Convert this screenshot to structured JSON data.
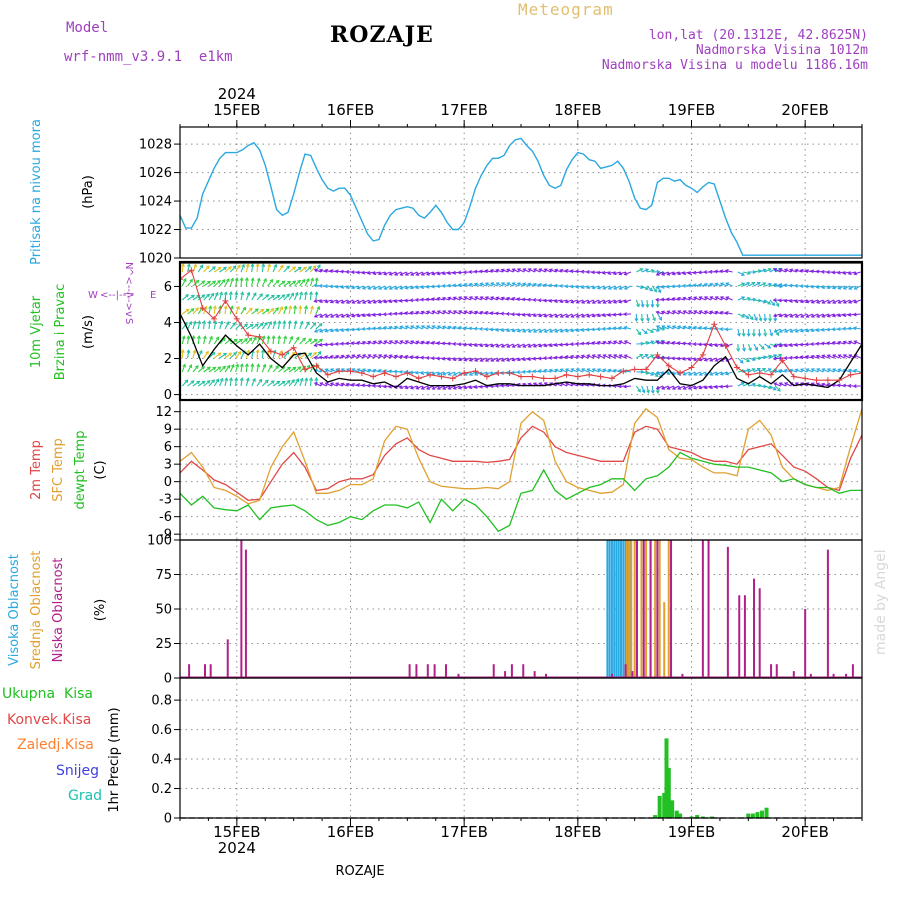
{
  "header": {
    "model_label": "Model",
    "model_name": "wrf-nmm_v3.9.1  e1km",
    "station": "ROZAJE",
    "product": "Meteogram",
    "coords": "lon,lat (20.1312E, 42.8625N)",
    "elevation": "Nadmorska Visina 1012m",
    "model_elevation": "Nadmorska Visina u modelu 1186.16m",
    "footer_station": "ROZAJE",
    "credit": "made by Angel"
  },
  "colors": {
    "pressure": "#2aa8e0",
    "wind_speed": "#000000",
    "gust": "#e04040",
    "temp2m": "#e04848",
    "sfc": "#e0a030",
    "dewpt": "#22c022",
    "cloud_high": "#2aa8e0",
    "cloud_mid": "#e0a030",
    "cloud_low": "#b0208a",
    "precip": "#22c022",
    "conv": "#e04848",
    "frozen": "#ff8030",
    "snow": "#4040e0",
    "grad": "#20c0b0",
    "compass": "#a040c0"
  },
  "axes": {
    "top_year": "2024",
    "bottom_year": "2024",
    "day_labels": [
      "15FEB",
      "16FEB",
      "17FEB",
      "18FEB",
      "19FEB",
      "20FEB"
    ]
  },
  "compass": {
    "n": "N",
    "e": "E",
    "w": "W",
    "s": "S",
    "arrow": "<--|-->",
    "vert": "^<--|-->v"
  },
  "chart_data": [
    {
      "type": "line",
      "panel": "pressure",
      "ylabel_main": "Pritisak na nivou mora",
      "ylabel_unit": "(hPa)",
      "yticks": [
        1020,
        1022,
        1024,
        1026,
        1028
      ],
      "ylim": [
        1020,
        1029.2
      ],
      "x_days": [
        -0.5,
        -0.45,
        -0.4,
        -0.35,
        -0.3,
        -0.25,
        -0.2,
        -0.15,
        -0.1,
        -0.05,
        0,
        0.05,
        0.1,
        0.15,
        0.2,
        0.25,
        0.3,
        0.35,
        0.4,
        0.45,
        0.5,
        0.55,
        0.6,
        0.65,
        0.7,
        0.75,
        0.8,
        0.85,
        0.9,
        0.95,
        1,
        1.05,
        1.1,
        1.15,
        1.2,
        1.25,
        1.3,
        1.35,
        1.4,
        1.45,
        1.5,
        1.55,
        1.6,
        1.65,
        1.7,
        1.75,
        1.8,
        1.85,
        1.9,
        1.95,
        2,
        2.05,
        2.1,
        2.15,
        2.2,
        2.25,
        2.3,
        2.35,
        2.4,
        2.45,
        2.5,
        2.55,
        2.6,
        2.65,
        2.7,
        2.75,
        2.8,
        2.85,
        2.9,
        2.95,
        3,
        3.05,
        3.1,
        3.15,
        3.2,
        3.25,
        3.3,
        3.35,
        3.4,
        3.45,
        3.5,
        3.55,
        3.6,
        3.65,
        3.7,
        3.75,
        3.8,
        3.85,
        3.9,
        3.95,
        4,
        4.05,
        4.1,
        4.15,
        4.2,
        4.25,
        4.3,
        4.35,
        4.4,
        4.45,
        4.5,
        4.55,
        4.6,
        4.65,
        4.7,
        4.75,
        4.8,
        4.85,
        4.9,
        4.95,
        5,
        5.05,
        5.1,
        5.15,
        5.2,
        5.25,
        5.3,
        5.35,
        5.4,
        5.45,
        5.5
      ],
      "series": [
        {
          "color": "#2aa8e0",
          "values": [
            1023.0,
            1022.1,
            1022.1,
            1022.8,
            1024.5,
            1025.4,
            1026.3,
            1027.0,
            1027.4,
            1027.4,
            1027.4,
            1027.6,
            1027.9,
            1028.1,
            1027.6,
            1026.5,
            1025.0,
            1023.4,
            1023.0,
            1023.2,
            1024.5,
            1026.0,
            1027.3,
            1027.2,
            1026.3,
            1025.5,
            1024.9,
            1024.7,
            1024.9,
            1024.9,
            1024.4,
            1023.5,
            1022.6,
            1021.7,
            1021.2,
            1021.3,
            1022.3,
            1023.0,
            1023.4,
            1023.5,
            1023.6,
            1023.5,
            1023.0,
            1022.8,
            1023.2,
            1023.7,
            1023.2,
            1022.5,
            1022.0,
            1022.0,
            1022.5,
            1023.6,
            1024.9,
            1025.8,
            1026.5,
            1027.0,
            1027.0,
            1027.2,
            1027.9,
            1028.3,
            1028.4,
            1027.9,
            1027.5,
            1026.8,
            1025.8,
            1025.1,
            1024.9,
            1025.1,
            1026.2,
            1026.9,
            1027.4,
            1027.3,
            1026.9,
            1026.8,
            1026.3,
            1026.4,
            1026.5,
            1026.8,
            1026.3,
            1025.4,
            1024.2,
            1023.5,
            1023.4,
            1023.7,
            1025.3,
            1025.6,
            1025.6,
            1025.4,
            1025.5,
            1025.1,
            1024.9,
            1024.6,
            1025.0,
            1025.3,
            1025.2,
            1024.0,
            1022.8,
            1021.8,
            1021.1,
            1020.2,
            1020.2,
            1020.2,
            1020.2,
            1020.2,
            1020.2,
            1020.2,
            1020.2,
            1020.2,
            1020.2,
            1020.2,
            1020.2,
            1020.2,
            1020.2,
            1020.2,
            1020.2,
            1020.2,
            1020.2,
            1020.2,
            1020.2,
            1020.2,
            1020.2
          ]
        }
      ]
    },
    {
      "type": "line",
      "panel": "wind",
      "ylabel_main_1": "10m Vjetar",
      "ylabel_main_2": "Brzina i Pravac",
      "ylabel_unit": "(m/s)",
      "yticks": [
        0,
        2,
        4,
        6
      ],
      "ylim": [
        -0.3,
        7.3
      ],
      "x_days": [
        -0.5,
        -0.4,
        -0.3,
        -0.2,
        -0.1,
        0,
        0.1,
        0.2,
        0.3,
        0.4,
        0.5,
        0.6,
        0.7,
        0.8,
        0.9,
        1,
        1.1,
        1.2,
        1.3,
        1.4,
        1.5,
        1.6,
        1.7,
        1.8,
        1.9,
        2,
        2.1,
        2.2,
        2.3,
        2.4,
        2.5,
        2.6,
        2.7,
        2.8,
        2.9,
        3,
        3.1,
        3.2,
        3.3,
        3.4,
        3.5,
        3.6,
        3.7,
        3.8,
        3.9,
        4,
        4.1,
        4.2,
        4.3,
        4.4,
        4.5,
        4.6,
        4.7,
        4.8,
        4.9,
        5,
        5.1,
        5.2,
        5.3,
        5.4,
        5.5
      ],
      "series": [
        {
          "name": "speed",
          "color": "#000000",
          "values": [
            4.5,
            3.2,
            1.6,
            2.5,
            3.3,
            2.7,
            2.2,
            2.8,
            2.0,
            1.5,
            2.2,
            2.3,
            1.2,
            0.7,
            0.9,
            0.8,
            0.8,
            0.6,
            0.7,
            0.4,
            0.9,
            0.7,
            0.5,
            0.5,
            0.5,
            0.6,
            0.8,
            0.5,
            0.6,
            0.6,
            0.5,
            0.5,
            0.5,
            0.6,
            0.7,
            0.6,
            0.6,
            0.5,
            0.5,
            0.6,
            0.9,
            0.8,
            0.8,
            1.4,
            0.6,
            0.5,
            0.8,
            1.6,
            2.1,
            0.9,
            0.6,
            1.0,
            0.6,
            1.1,
            0.5,
            0.6,
            0.5,
            0.4,
            0.8,
            1.8,
            2.8
          ]
        },
        {
          "name": "gust",
          "color": "#e04040",
          "values": [
            6.4,
            6.9,
            4.8,
            4.2,
            5.2,
            4.2,
            3.3,
            3.2,
            2.4,
            2.2,
            2.6,
            1.4,
            1.6,
            1.1,
            1.3,
            1.3,
            1.2,
            1.0,
            1.2,
            1.0,
            1.2,
            0.9,
            1.1,
            1.0,
            0.9,
            1.2,
            1.3,
            1.0,
            1.2,
            1.2,
            1.0,
            1.0,
            0.9,
            0.9,
            1.1,
            1.0,
            1.1,
            1.0,
            0.9,
            1.3,
            1.4,
            1.4,
            2.2,
            1.6,
            1.2,
            1.5,
            2.2,
            3.9,
            2.7,
            1.5,
            1.1,
            1.2,
            1.1,
            1.9,
            1.0,
            0.9,
            0.8,
            0.8,
            0.8,
            1.1,
            1.2
          ]
        }
      ]
    },
    {
      "type": "line",
      "panel": "temperature",
      "ylabel_main_1": "2m Temp",
      "ylabel_main_2": "SFC Temp",
      "ylabel_main_3": "dewpt Temp",
      "ylabel_unit": "(C)",
      "yticks": [
        -9,
        -6,
        -3,
        0,
        3,
        6,
        9,
        12
      ],
      "ylim": [
        -10,
        14
      ],
      "x_days": [
        -0.5,
        -0.4,
        -0.3,
        -0.2,
        -0.1,
        0,
        0.1,
        0.2,
        0.3,
        0.4,
        0.5,
        0.6,
        0.7,
        0.8,
        0.9,
        1,
        1.1,
        1.2,
        1.3,
        1.4,
        1.5,
        1.6,
        1.7,
        1.8,
        1.9,
        2,
        2.1,
        2.2,
        2.3,
        2.4,
        2.5,
        2.6,
        2.7,
        2.8,
        2.9,
        3,
        3.1,
        3.2,
        3.3,
        3.4,
        3.5,
        3.6,
        3.7,
        3.8,
        3.9,
        4,
        4.1,
        4.2,
        4.3,
        4.4,
        4.5,
        4.6,
        4.7,
        4.8,
        4.9,
        5,
        5.1,
        5.2,
        5.3,
        5.4,
        5.5
      ],
      "series": [
        {
          "name": "2m",
          "color": "#e04848",
          "values": [
            1.5,
            3.5,
            2.0,
            0.3,
            -0.5,
            -1.8,
            -3.2,
            -3.0,
            0.0,
            3.0,
            5.0,
            2.5,
            -1.5,
            -1.2,
            0.0,
            0.5,
            0.5,
            1.2,
            4.5,
            6.5,
            7.5,
            5.5,
            4.5,
            4.0,
            3.5,
            3.5,
            3.5,
            3.3,
            3.5,
            3.8,
            7.5,
            9.5,
            8.5,
            6.0,
            5.0,
            4.5,
            4.0,
            3.5,
            3.5,
            3.5,
            8.5,
            9.5,
            9.0,
            6.0,
            5.5,
            5.0,
            4.0,
            3.5,
            3.5,
            3.0,
            5.5,
            6.0,
            6.5,
            4.5,
            2.5,
            1.8,
            0.5,
            -1.0,
            -1.5,
            4.0,
            8.0
          ]
        },
        {
          "name": "sfc",
          "color": "#e0a030",
          "values": [
            3.5,
            5.0,
            2.5,
            -1.0,
            -1.5,
            -2.5,
            -3.8,
            -3.2,
            2.5,
            6.0,
            8.5,
            3.5,
            -2.0,
            -2.0,
            -1.5,
            -0.5,
            -0.5,
            0.5,
            7.0,
            9.5,
            9.0,
            4.0,
            0.0,
            -0.8,
            -1.0,
            -1.2,
            -1.2,
            -1.0,
            -1.2,
            0.0,
            10.0,
            12.0,
            10.5,
            3.5,
            0.0,
            -1.0,
            -1.5,
            -2.0,
            -1.8,
            -0.5,
            10.0,
            12.5,
            11.0,
            5.5,
            4.0,
            3.8,
            2.5,
            1.5,
            1.5,
            1.0,
            9.0,
            10.5,
            8.0,
            2.5,
            0.5,
            -0.5,
            -1.0,
            -1.5,
            -1.0,
            6.0,
            12.5
          ]
        },
        {
          "name": "dewpt",
          "color": "#22c022",
          "values": [
            -2.0,
            -4.0,
            -2.5,
            -4.5,
            -4.8,
            -5.0,
            -4.0,
            -6.5,
            -4.5,
            -4.2,
            -4.0,
            -5.0,
            -6.5,
            -7.5,
            -7.0,
            -6.0,
            -6.5,
            -5.0,
            -4.0,
            -4.0,
            -4.5,
            -3.5,
            -7.0,
            -3.0,
            -5.0,
            -3.0,
            -4.0,
            -6.0,
            -8.5,
            -7.5,
            -2.0,
            -1.5,
            2.0,
            -1.5,
            -3.0,
            -2.0,
            -1.0,
            -0.5,
            0.5,
            0.5,
            -1.5,
            0.5,
            1.0,
            2.5,
            5.0,
            4.0,
            3.5,
            3.0,
            2.8,
            2.5,
            2.5,
            2.0,
            1.5,
            0.0,
            0.5,
            -0.5,
            -1.0,
            -1.0,
            -2.0,
            -1.5,
            -1.5
          ]
        }
      ]
    },
    {
      "type": "bar",
      "panel": "clouds",
      "ylabel_main_1": "Visoka Oblacnost",
      "ylabel_main_2": "Srednja Oblacnost",
      "ylabel_main_3": "Niska Oblacnost",
      "ylabel_unit": "(%)",
      "yticks": [
        0,
        25,
        50,
        75,
        100
      ],
      "ylim": [
        0,
        100
      ],
      "series": [
        {
          "name": "high",
          "color": "#2aa8e0",
          "x_days": [
            3.26,
            3.28,
            3.3,
            3.32,
            3.34,
            3.36,
            3.38,
            3.4,
            3.42,
            3.44,
            3.46
          ],
          "values": [
            100,
            100,
            100,
            100,
            100,
            100,
            100,
            100,
            100,
            100,
            100
          ]
        },
        {
          "name": "mid",
          "color": "#e0a030",
          "x_days": [
            3.43,
            3.45,
            3.47,
            3.5,
            3.52,
            3.56,
            3.6,
            3.64,
            3.68,
            3.72,
            3.76,
            3.8
          ],
          "values": [
            100,
            100,
            100,
            100,
            100,
            100,
            100,
            100,
            100,
            100,
            55,
            100
          ]
        },
        {
          "name": "low",
          "color": "#b0208a",
          "x_days": [
            -0.42,
            -0.28,
            -0.23,
            -0.08,
            0.04,
            0.08,
            1.52,
            1.58,
            1.68,
            1.74,
            1.84,
            1.95,
            2.26,
            2.36,
            2.42,
            2.52,
            2.62,
            2.72,
            3.3,
            3.42,
            3.48,
            3.52,
            3.58,
            3.64,
            3.7,
            3.82,
            3.92,
            4.1,
            4.15,
            4.32,
            4.42,
            4.47,
            4.55,
            4.6,
            4.7,
            4.75,
            4.9,
            5.0,
            5.05,
            5.2,
            5.25,
            5.36,
            5.42
          ],
          "values": [
            10,
            10,
            10,
            28,
            100,
            93,
            10,
            10,
            10,
            10,
            10,
            3,
            10,
            5,
            10,
            10,
            5,
            3,
            3,
            10,
            5,
            100,
            100,
            100,
            100,
            100,
            3,
            100,
            100,
            95,
            60,
            60,
            72,
            65,
            10,
            10,
            5,
            50,
            3,
            93,
            3,
            3,
            10
          ]
        }
      ]
    },
    {
      "type": "bar",
      "panel": "precip",
      "legend": [
        "Ukupna  Kisa",
        "Konvek.Kisa",
        "Zaledj.Kisa",
        "Snijeg",
        "Grad"
      ],
      "ylabel_unit": "1hr Precip (mm)",
      "yticks": [
        0,
        0.2,
        0.4,
        0.6,
        0.8
      ],
      "ylim": [
        0,
        0.95
      ],
      "series": [
        {
          "name": "total",
          "color": "#22c022",
          "x_days": [
            3.68,
            3.72,
            3.76,
            3.78,
            3.8,
            3.83,
            3.87,
            3.9,
            4.0,
            4.05,
            4.1,
            4.18,
            4.5,
            4.54,
            4.58,
            4.62,
            4.66
          ],
          "values": [
            0.02,
            0.15,
            0.17,
            0.54,
            0.34,
            0.12,
            0.05,
            0.03,
            0.01,
            0.02,
            0.01,
            0.01,
            0.03,
            0.03,
            0.04,
            0.05,
            0.07
          ]
        }
      ]
    }
  ]
}
